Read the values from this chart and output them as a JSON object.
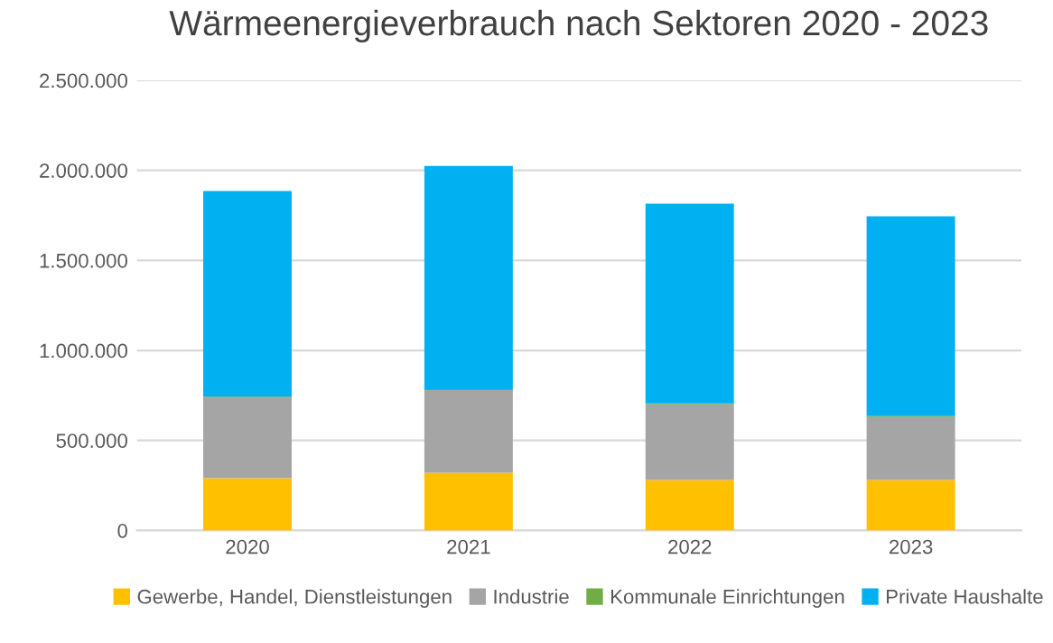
{
  "chart_data": {
    "type": "bar",
    "title": "Wärmeenergieverbrauch nach Sektoren 2020 - 2023",
    "categories": [
      "2020",
      "2021",
      "2022",
      "2023"
    ],
    "stacked": true,
    "series": [
      {
        "name": "Gewerbe, Handel, Dienstleistungen",
        "color": "#ffc000",
        "values": [
          290000,
          320000,
          280000,
          280000
        ]
      },
      {
        "name": "Industrie",
        "color": "#a5a5a5",
        "values": [
          450000,
          460000,
          420000,
          350000
        ]
      },
      {
        "name": "Kommunale Einrichtungen",
        "color": "#70ad47",
        "values": [
          5000,
          5000,
          5000,
          5000
        ]
      },
      {
        "name": "Private Haushalte",
        "color": "#00b0f0",
        "values": [
          1140000,
          1240000,
          1110000,
          1110000
        ]
      }
    ],
    "ylim": [
      0,
      2500000
    ],
    "yticks": [
      {
        "value": 0,
        "label": "0"
      },
      {
        "value": 500000,
        "label": "500.000"
      },
      {
        "value": 1000000,
        "label": "1.000.000"
      },
      {
        "value": 1500000,
        "label": "1.500.000"
      },
      {
        "value": 2000000,
        "label": "2.000.000"
      },
      {
        "value": 2500000,
        "label": "2.500.000"
      }
    ],
    "grid": "y",
    "legend": "bottom"
  }
}
